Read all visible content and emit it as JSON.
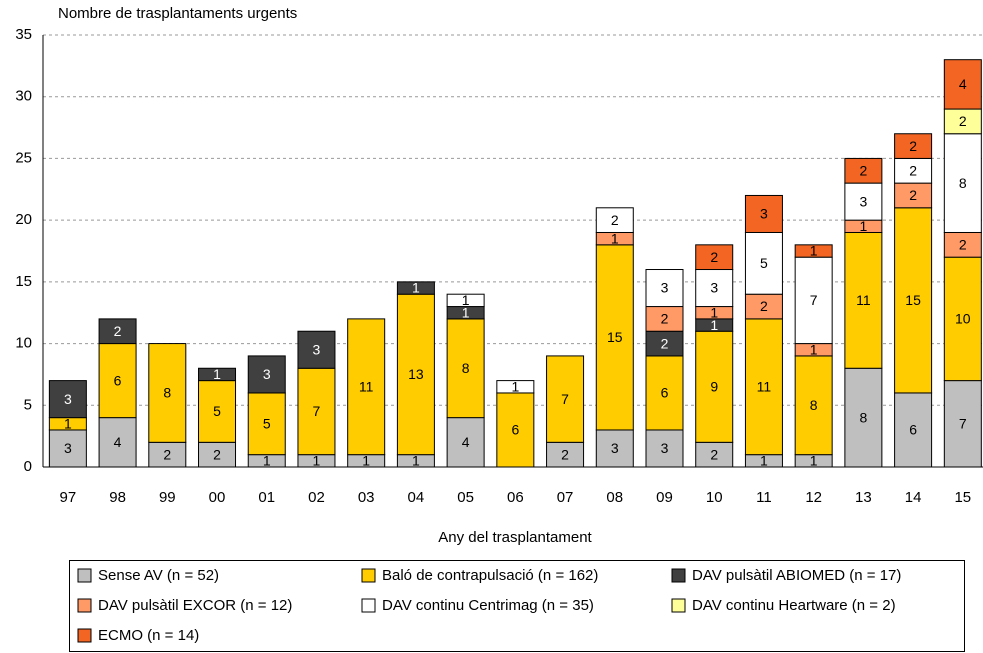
{
  "chart_data": {
    "type": "stacked_bar",
    "y_label": "Nombre de trasplantaments urgents",
    "x_label": "Any del trasplantament",
    "categories": [
      "97",
      "98",
      "99",
      "00",
      "01",
      "02",
      "03",
      "04",
      "05",
      "06",
      "07",
      "08",
      "09",
      "10",
      "11",
      "12",
      "13",
      "14",
      "15"
    ],
    "series": [
      {
        "name": "Sense AV (n = 52)",
        "color": "#bfbfbf",
        "values": [
          3,
          4,
          2,
          2,
          1,
          1,
          1,
          1,
          4,
          0,
          2,
          3,
          3,
          2,
          1,
          1,
          8,
          6,
          7
        ]
      },
      {
        "name": "Baló de contrapulsació (n = 162)",
        "color": "#ffcc00",
        "values": [
          1,
          6,
          8,
          5,
          5,
          7,
          11,
          13,
          8,
          6,
          7,
          15,
          6,
          9,
          11,
          8,
          11,
          15,
          10
        ]
      },
      {
        "name": "DAV pulsàtil ABIOMED (n = 17)",
        "color": "#404040",
        "values": [
          3,
          2,
          0,
          1,
          3,
          3,
          0,
          1,
          1,
          0,
          0,
          0,
          2,
          1,
          0,
          0,
          0,
          0,
          0
        ]
      },
      {
        "name": "DAV pulsàtil EXCOR (n = 12)",
        "color": "#ff9966",
        "values": [
          0,
          0,
          0,
          0,
          0,
          0,
          0,
          0,
          0,
          0,
          0,
          1,
          2,
          1,
          2,
          1,
          1,
          2,
          2
        ]
      },
      {
        "name": "DAV continu Centrimag (n = 35)",
        "color": "#ffffff",
        "values": [
          0,
          0,
          0,
          0,
          0,
          0,
          0,
          0,
          1,
          1,
          0,
          2,
          3,
          3,
          5,
          7,
          3,
          2,
          8
        ]
      },
      {
        "name": "DAV continu Heartware (n = 2)",
        "color": "#ffff99",
        "values": [
          0,
          0,
          0,
          0,
          0,
          0,
          0,
          0,
          0,
          0,
          0,
          0,
          0,
          0,
          0,
          0,
          0,
          0,
          2
        ]
      },
      {
        "name": "ECMO (n = 14)",
        "color": "#f26522",
        "values": [
          0,
          0,
          0,
          0,
          0,
          0,
          0,
          0,
          0,
          0,
          0,
          0,
          0,
          2,
          3,
          1,
          2,
          2,
          4
        ]
      }
    ],
    "ylim": [
      0,
      35
    ],
    "yticks": [
      0,
      5,
      10,
      15,
      20,
      25,
      30,
      35
    ],
    "grid": true
  }
}
